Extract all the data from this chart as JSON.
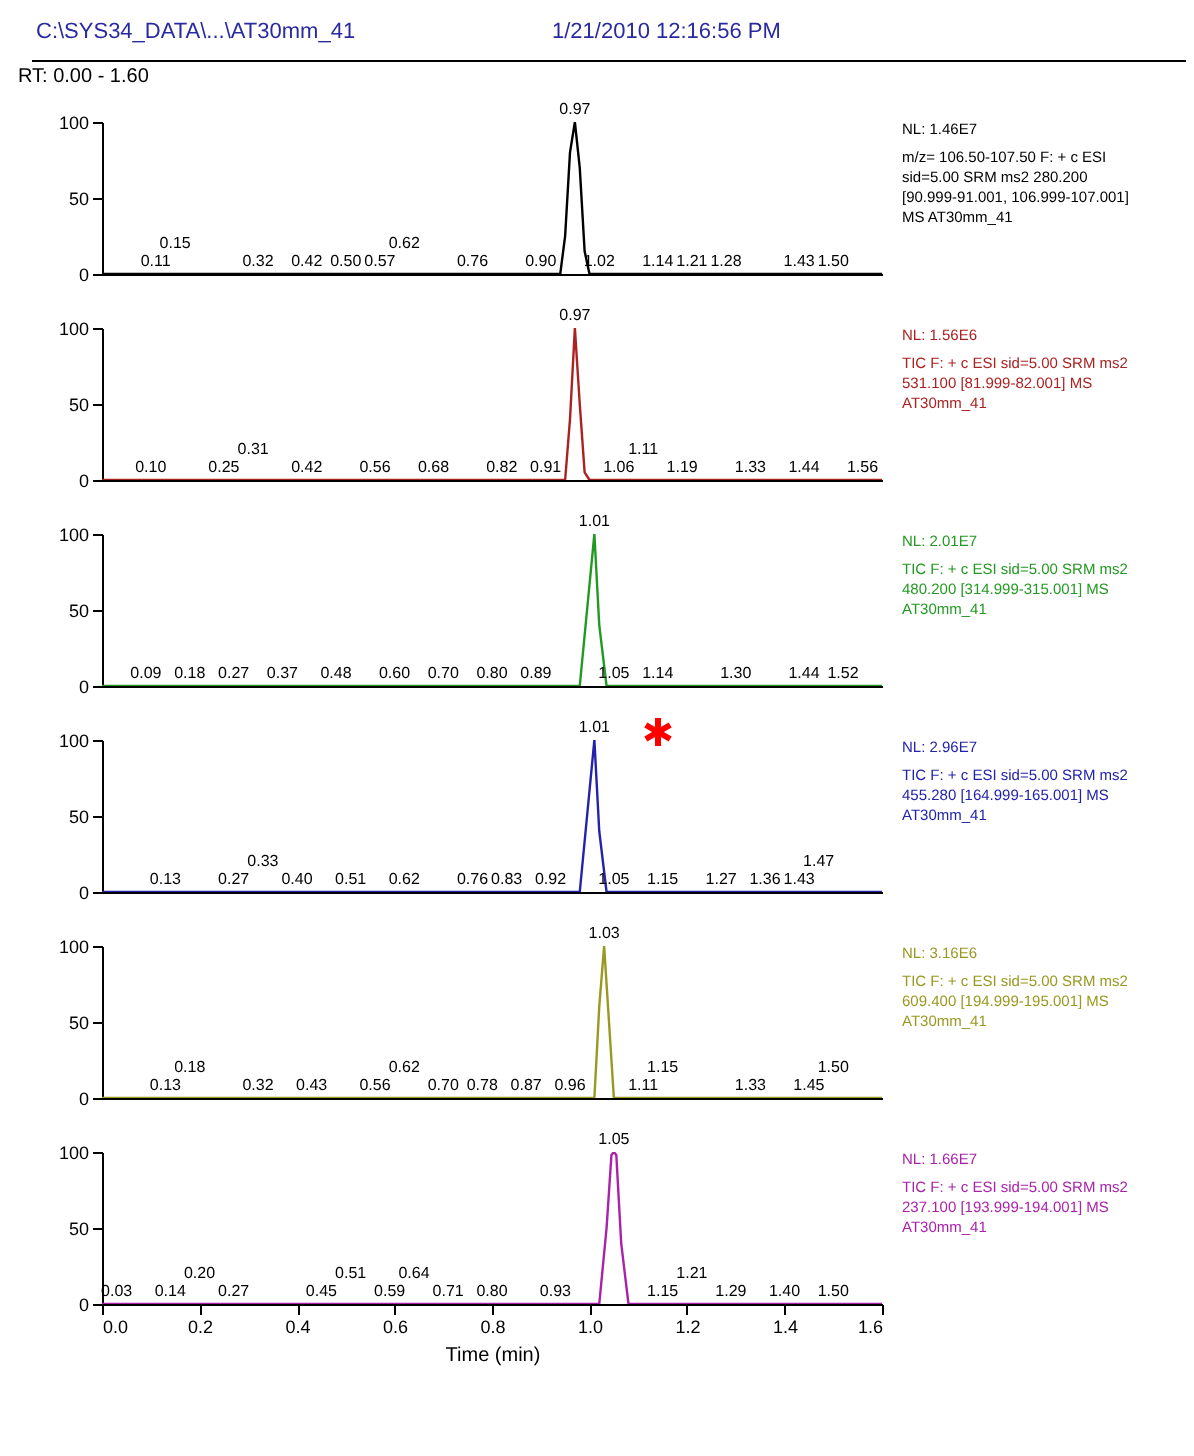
{
  "chart_data": [
    {
      "type": "line",
      "title": "C:\\SYS34_DATA\\...\\AT30mm_41",
      "subtitle": "1/21/2010 12:16:56 PM",
      "xlim": [
        0,
        1.6
      ],
      "ylim": [
        0,
        100
      ],
      "yticks": [
        0,
        50,
        100
      ],
      "tick_labels": "y",
      "series": [
        {
          "color": "#000000",
          "x": [
            0,
            0.94,
            0.95,
            0.96,
            0.97,
            0.98,
            0.99,
            1.0,
            1.6
          ],
          "values": [
            0,
            0,
            25,
            80,
            100,
            70,
            15,
            0,
            0
          ]
        }
      ],
      "annotations": [
        "RT: 0.00 - 1.60",
        "NL: 1.46E7",
        "m/z= 106.50-107.50 F: + c ESI",
        "sid=5.00  SRM ms2 280.200",
        "[90.999-91.001, 106.999-107.001]",
        "MS AT30mm_41",
        {
          "text": "0.97",
          "x": 0.97,
          "y": 100
        },
        {
          "text": "0.11",
          "x": 0.11,
          "y": 0
        },
        {
          "text": "0.15",
          "x": 0.15,
          "y": 0
        },
        {
          "text": "0.32",
          "x": 0.32,
          "y": 0
        },
        {
          "text": "0.42",
          "x": 0.42,
          "y": 0
        },
        {
          "text": "0.50",
          "x": 0.5,
          "y": 0
        },
        {
          "text": "0.57",
          "x": 0.57,
          "y": 0
        },
        {
          "text": "0.62",
          "x": 0.62,
          "y": 0
        },
        {
          "text": "0.76",
          "x": 0.76,
          "y": 0
        },
        {
          "text": "0.90",
          "x": 0.9,
          "y": 0
        },
        {
          "text": "1.02",
          "x": 1.02,
          "y": 0
        },
        {
          "text": "1.14",
          "x": 1.14,
          "y": 0
        },
        {
          "text": "1.21",
          "x": 1.21,
          "y": 0
        },
        {
          "text": "1.28",
          "x": 1.28,
          "y": 0
        },
        {
          "text": "1.43",
          "x": 1.43,
          "y": 0
        },
        {
          "text": "1.50",
          "x": 1.5,
          "y": 0
        }
      ]
    },
    {
      "type": "line",
      "xlim": [
        0,
        1.6
      ],
      "ylim": [
        0,
        100
      ],
      "yticks": [
        0,
        50,
        100
      ],
      "tick_labels": "y",
      "series": [
        {
          "color": "#aa2222",
          "x": [
            0,
            0.95,
            0.96,
            0.97,
            0.98,
            0.99,
            1.0,
            1.6
          ],
          "values": [
            0,
            0,
            40,
            100,
            50,
            5,
            0,
            0
          ]
        }
      ],
      "annotations": [
        "NL: 1.56E6",
        "TIC F: + c ESI sid=5.00  SRM ms2",
        "531.100 [81.999-82.001]  MS",
        "AT30mm_41",
        {
          "text": "0.97",
          "x": 0.97,
          "y": 100
        },
        {
          "text": "0.10",
          "x": 0.1,
          "y": 0
        },
        {
          "text": "0.25",
          "x": 0.25,
          "y": 0
        },
        {
          "text": "0.31",
          "x": 0.31,
          "y": 0
        },
        {
          "text": "0.42",
          "x": 0.42,
          "y": 0
        },
        {
          "text": "0.56",
          "x": 0.56,
          "y": 0
        },
        {
          "text": "0.68",
          "x": 0.68,
          "y": 0
        },
        {
          "text": "0.82",
          "x": 0.82,
          "y": 0
        },
        {
          "text": "0.91",
          "x": 0.91,
          "y": 0
        },
        {
          "text": "1.06",
          "x": 1.06,
          "y": 0
        },
        {
          "text": "1.11",
          "x": 1.11,
          "y": 0
        },
        {
          "text": "1.19",
          "x": 1.19,
          "y": 0
        },
        {
          "text": "1.33",
          "x": 1.33,
          "y": 0
        },
        {
          "text": "1.44",
          "x": 1.44,
          "y": 0
        },
        {
          "text": "1.56",
          "x": 1.56,
          "y": 0
        }
      ]
    },
    {
      "type": "line",
      "xlim": [
        0,
        1.6
      ],
      "ylim": [
        0,
        100
      ],
      "yticks": [
        0,
        50,
        100
      ],
      "tick_labels": "y",
      "series": [
        {
          "color": "#229922",
          "x": [
            0,
            0.98,
            0.995,
            1.01,
            1.02,
            1.035,
            1.6
          ],
          "values": [
            0,
            0,
            50,
            100,
            40,
            0,
            0
          ]
        }
      ],
      "annotations": [
        "NL: 2.01E7",
        "TIC F: + c ESI sid=5.00  SRM ms2",
        "480.200 [314.999-315.001]  MS",
        "AT30mm_41",
        {
          "text": "1.01",
          "x": 1.01,
          "y": 100
        },
        {
          "text": "0.09",
          "x": 0.09,
          "y": 0
        },
        {
          "text": "0.18",
          "x": 0.18,
          "y": 0
        },
        {
          "text": "0.27",
          "x": 0.27,
          "y": 0
        },
        {
          "text": "0.37",
          "x": 0.37,
          "y": 0
        },
        {
          "text": "0.48",
          "x": 0.48,
          "y": 0
        },
        {
          "text": "0.60",
          "x": 0.6,
          "y": 0
        },
        {
          "text": "0.70",
          "x": 0.7,
          "y": 0
        },
        {
          "text": "0.80",
          "x": 0.8,
          "y": 0
        },
        {
          "text": "0.89",
          "x": 0.89,
          "y": 0
        },
        {
          "text": "1.05",
          "x": 1.05,
          "y": 0
        },
        {
          "text": "1.14",
          "x": 1.14,
          "y": 0
        },
        {
          "text": "1.30",
          "x": 1.3,
          "y": 0
        },
        {
          "text": "1.44",
          "x": 1.44,
          "y": 0
        },
        {
          "text": "1.52",
          "x": 1.52,
          "y": 0
        }
      ]
    },
    {
      "type": "line",
      "xlim": [
        0,
        1.6
      ],
      "ylim": [
        0,
        100
      ],
      "yticks": [
        0,
        50,
        100
      ],
      "tick_labels": "y",
      "series": [
        {
          "color": "#2222aa",
          "x": [
            0,
            0.98,
            0.995,
            1.01,
            1.02,
            1.035,
            1.6
          ],
          "values": [
            0,
            0,
            50,
            100,
            40,
            0,
            0
          ]
        }
      ],
      "annotations": [
        "NL: 2.96E7",
        "TIC F: + c ESI sid=5.00  SRM ms2",
        "455.280 [164.999-165.001]  MS",
        "AT30mm_41",
        {
          "text": "1.01",
          "x": 1.01,
          "y": 100
        },
        {
          "text": "0.13",
          "x": 0.13,
          "y": 0
        },
        {
          "text": "0.27",
          "x": 0.27,
          "y": 0
        },
        {
          "text": "0.33",
          "x": 0.33,
          "y": 0
        },
        {
          "text": "0.40",
          "x": 0.4,
          "y": 0
        },
        {
          "text": "0.51",
          "x": 0.51,
          "y": 0
        },
        {
          "text": "0.62",
          "x": 0.62,
          "y": 0
        },
        {
          "text": "0.76",
          "x": 0.76,
          "y": 0
        },
        {
          "text": "0.83",
          "x": 0.83,
          "y": 0
        },
        {
          "text": "0.92",
          "x": 0.92,
          "y": 0
        },
        {
          "text": "1.05",
          "x": 1.05,
          "y": 0
        },
        {
          "text": "1.15",
          "x": 1.15,
          "y": 0
        },
        {
          "text": "1.27",
          "x": 1.27,
          "y": 0
        },
        {
          "text": "1.36",
          "x": 1.36,
          "y": 0
        },
        {
          "text": "1.43",
          "x": 1.43,
          "y": 0
        },
        {
          "text": "1.47",
          "x": 1.47,
          "y": 0
        }
      ]
    },
    {
      "type": "line",
      "xlim": [
        0,
        1.6
      ],
      "ylim": [
        0,
        100
      ],
      "yticks": [
        0,
        50,
        100
      ],
      "tick_labels": "y",
      "series": [
        {
          "color": "#999922",
          "x": [
            0,
            1.01,
            1.02,
            1.03,
            1.04,
            1.05,
            1.6
          ],
          "values": [
            0,
            0,
            60,
            100,
            50,
            0,
            0
          ]
        }
      ],
      "annotations": [
        "NL: 3.16E6",
        "TIC F: + c ESI sid=5.00  SRM ms2",
        "609.400 [194.999-195.001]  MS",
        "AT30mm_41",
        {
          "text": "1.03",
          "x": 1.03,
          "y": 100
        },
        {
          "text": "0.13",
          "x": 0.13,
          "y": 0
        },
        {
          "text": "0.18",
          "x": 0.18,
          "y": 0
        },
        {
          "text": "0.32",
          "x": 0.32,
          "y": 0
        },
        {
          "text": "0.43",
          "x": 0.43,
          "y": 0
        },
        {
          "text": "0.56",
          "x": 0.56,
          "y": 0
        },
        {
          "text": "0.62",
          "x": 0.62,
          "y": 0
        },
        {
          "text": "0.70",
          "x": 0.7,
          "y": 0
        },
        {
          "text": "0.78",
          "x": 0.78,
          "y": 0
        },
        {
          "text": "0.87",
          "x": 0.87,
          "y": 0
        },
        {
          "text": "0.96",
          "x": 0.96,
          "y": 0
        },
        {
          "text": "1.11",
          "x": 1.11,
          "y": 0
        },
        {
          "text": "1.15",
          "x": 1.15,
          "y": 0
        },
        {
          "text": "1.33",
          "x": 1.33,
          "y": 0
        },
        {
          "text": "1.45",
          "x": 1.45,
          "y": 0
        },
        {
          "text": "1.50",
          "x": 1.5,
          "y": 0
        }
      ]
    },
    {
      "type": "line",
      "xlim": [
        0,
        1.6
      ],
      "ylim": [
        0,
        100
      ],
      "yticks": [
        0,
        50,
        100
      ],
      "xlabel": "Time (min)",
      "xticks": [
        {
          "value": 0,
          "label": "0.0"
        },
        {
          "value": 0.2,
          "label": "0.2"
        },
        {
          "value": 0.4,
          "label": "0.4"
        },
        {
          "value": 0.6,
          "label": "0.6"
        },
        {
          "value": 0.8,
          "label": "0.8"
        },
        {
          "value": 1,
          "label": "1.0"
        },
        {
          "value": 1.2,
          "label": "1.2"
        },
        {
          "value": 1.4,
          "label": "1.4"
        },
        {
          "value": 1.6,
          "label": "1.6"
        }
      ],
      "series": [
        {
          "color": "#aa22aa",
          "x": [
            0,
            1.02,
            1.035,
            1.045,
            1.05,
            1.055,
            1.065,
            1.08,
            1.6
          ],
          "values": [
            0,
            0,
            50,
            98,
            100,
            98,
            40,
            0,
            0
          ]
        }
      ],
      "annotations": [
        "NL: 1.66E7",
        "TIC F: + c ESI sid=5.00  SRM ms2",
        "237.100 [193.999-194.001]  MS",
        "AT30mm_41",
        {
          "text": "1.05",
          "x": 1.05,
          "y": 100
        },
        {
          "text": "0.03",
          "x": 0.03,
          "y": 0
        },
        {
          "text": "0.14",
          "x": 0.14,
          "y": 0
        },
        {
          "text": "0.20",
          "x": 0.2,
          "y": 0
        },
        {
          "text": "0.27",
          "x": 0.27,
          "y": 0
        },
        {
          "text": "0.45",
          "x": 0.45,
          "y": 0
        },
        {
          "text": "0.51",
          "x": 0.51,
          "y": 0
        },
        {
          "text": "0.59",
          "x": 0.59,
          "y": 0
        },
        {
          "text": "0.64",
          "x": 0.64,
          "y": 0
        },
        {
          "text": "0.71",
          "x": 0.71,
          "y": 0
        },
        {
          "text": "0.80",
          "x": 0.8,
          "y": 0
        },
        {
          "text": "0.93",
          "x": 0.93,
          "y": 0
        },
        {
          "text": "1.15",
          "x": 1.15,
          "y": 0
        },
        {
          "text": "1.21",
          "x": 1.21,
          "y": 0
        },
        {
          "text": "1.29",
          "x": 1.29,
          "y": 0
        },
        {
          "text": "1.40",
          "x": 1.4,
          "y": 0
        },
        {
          "text": "1.50",
          "x": 1.5,
          "y": 0
        }
      ]
    }
  ]
}
